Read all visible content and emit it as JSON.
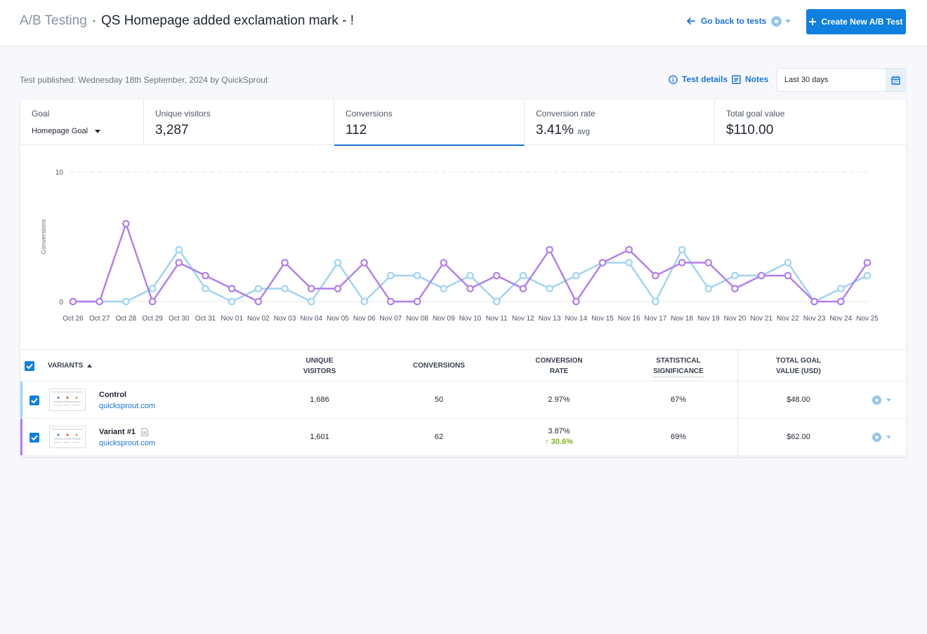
{
  "header": {
    "section": "A/B Testing",
    "separator": "•",
    "title": "QS Homepage added exclamation mark - !",
    "back_label": "Go back to tests",
    "create_label": "Create New A/B Test"
  },
  "subheader": {
    "published": "Test published: Wednesday 18th September, 2024 by QuickSprout",
    "details_label": "Test details",
    "notes_label": "Notes",
    "date_range": "Last 30 days"
  },
  "metrics": {
    "goal_label": "Goal",
    "goal_value": "Homepage Goal",
    "visitors_label": "Unique visitors",
    "visitors_value": "3,287",
    "conversions_label": "Conversions",
    "conversions_value": "112",
    "rate_label": "Conversion rate",
    "rate_value": "3.41%",
    "rate_suffix": "avg",
    "goal_total_label": "Total goal value",
    "goal_total_value": "$110.00"
  },
  "chart_data": {
    "type": "line",
    "ylabel": "Conversions",
    "ylim": [
      0,
      10
    ],
    "yticks": [
      0,
      10
    ],
    "grid": true,
    "categories": [
      "Oct 26",
      "Oct 27",
      "Oct 28",
      "Oct 29",
      "Oct 30",
      "Oct 31",
      "Nov 01",
      "Nov 02",
      "Nov 03",
      "Nov 04",
      "Nov 05",
      "Nov 06",
      "Nov 07",
      "Nov 08",
      "Nov 09",
      "Nov 10",
      "Nov 11",
      "Nov 12",
      "Nov 13",
      "Nov 14",
      "Nov 15",
      "Nov 16",
      "Nov 17",
      "Nov 18",
      "Nov 19",
      "Nov 20",
      "Nov 21",
      "Nov 22",
      "Nov 23",
      "Nov 24",
      "Nov 25"
    ],
    "series": [
      {
        "color": "#9fd3f2",
        "values": [
          0,
          0,
          0,
          1,
          4,
          1,
          0,
          1,
          1,
          0,
          3,
          0,
          2,
          2,
          1,
          2,
          0,
          2,
          1,
          2,
          3,
          3,
          0,
          4,
          1,
          2,
          2,
          3,
          0,
          1,
          2
        ]
      },
      {
        "color": "#b07ded",
        "values": [
          0,
          0,
          6,
          0,
          3,
          2,
          1,
          0,
          3,
          1,
          1,
          3,
          0,
          0,
          3,
          1,
          2,
          1,
          4,
          0,
          3,
          4,
          2,
          3,
          3,
          1,
          2,
          2,
          0,
          0,
          3
        ]
      }
    ]
  },
  "table": {
    "headers": {
      "variants": "VARIANTS",
      "visitors": [
        "UNIQUE",
        "VISITORS"
      ],
      "conversions": "CONVERSIONS",
      "rate": [
        "CONVERSION",
        "RATE"
      ],
      "significance": [
        "STATISTICAL",
        "SIGNIFICANCE"
      ],
      "goal_value": [
        "TOTAL GOAL",
        "VALUE (USD)"
      ]
    },
    "rows": [
      {
        "name": "Control",
        "url": "quicksprout.com",
        "visitors": "1,686",
        "conversions": "50",
        "rate": "2.97%",
        "significance": "67%",
        "goal_value": "$48.00",
        "color": "#9fd3f2"
      },
      {
        "name": "Variant #1",
        "url": "quicksprout.com",
        "visitors": "1,601",
        "conversions": "62",
        "rate": "3.87%",
        "lift": "↑ 30.6%",
        "significance": "69%",
        "goal_value": "$62.00",
        "color": "#b07ded"
      }
    ]
  }
}
